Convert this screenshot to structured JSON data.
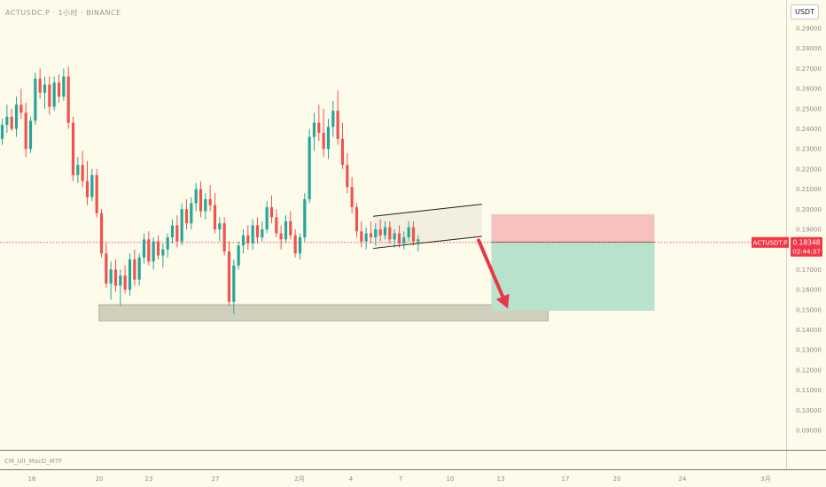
{
  "header": {
    "symbol_title": "ACTUSDC.P · 1小时 · BINANCE",
    "currency": "USDT"
  },
  "indicator": {
    "name": "CM_Ult_MacD_MTF"
  },
  "colors": {
    "background": "#fdfbe9",
    "bull": "#26a69a",
    "bear": "#ef5350",
    "price_line": "#f23645",
    "stop_zone": "#f7c1bd",
    "target_zone": "#b9e2cc",
    "support_zone": "#c9c9b6",
    "arrow": "#e8374b"
  },
  "chart_data": {
    "type": "candlestick",
    "title": "ACTUSDC.P · 1小时 · BINANCE",
    "x_tick_labels": [
      "16",
      "20",
      "23",
      "27",
      "2月",
      "4",
      "7",
      "10",
      "13",
      "17",
      "20",
      "24",
      "3月"
    ],
    "y_tick_labels": [
      "0.29000",
      "0.28000",
      "0.27000",
      "0.26000",
      "0.25000",
      "0.24000",
      "0.23000",
      "0.22000",
      "0.21000",
      "0.20000",
      "0.19000",
      "0.18000",
      "0.17000",
      "0.16000",
      "0.15000",
      "0.14000",
      "0.13000",
      "0.12000",
      "0.11000",
      "0.10000",
      "0.09000"
    ],
    "ylim": [
      0.085,
      0.3
    ],
    "y_ticks": [
      0.29,
      0.28,
      0.27,
      0.26,
      0.25,
      0.24,
      0.23,
      0.22,
      0.21,
      0.2,
      0.19,
      0.18,
      0.17,
      0.16,
      0.15,
      0.14,
      0.13,
      0.12,
      0.11,
      0.1,
      0.09
    ],
    "last_price": {
      "symbol": "ACTUSDT.P",
      "value": 0.18348,
      "price_label": "0.18348",
      "countdown": "02:44:37"
    },
    "candles": [
      {
        "o": 0.235,
        "h": 0.245,
        "l": 0.232,
        "c": 0.242
      },
      {
        "o": 0.242,
        "h": 0.252,
        "l": 0.238,
        "c": 0.246
      },
      {
        "o": 0.246,
        "h": 0.25,
        "l": 0.239,
        "c": 0.24
      },
      {
        "o": 0.24,
        "h": 0.256,
        "l": 0.236,
        "c": 0.252
      },
      {
        "o": 0.252,
        "h": 0.26,
        "l": 0.245,
        "c": 0.248
      },
      {
        "o": 0.248,
        "h": 0.253,
        "l": 0.226,
        "c": 0.23
      },
      {
        "o": 0.23,
        "h": 0.246,
        "l": 0.228,
        "c": 0.244
      },
      {
        "o": 0.244,
        "h": 0.268,
        "l": 0.242,
        "c": 0.265
      },
      {
        "o": 0.265,
        "h": 0.27,
        "l": 0.255,
        "c": 0.258
      },
      {
        "o": 0.258,
        "h": 0.266,
        "l": 0.25,
        "c": 0.262
      },
      {
        "o": 0.262,
        "h": 0.266,
        "l": 0.247,
        "c": 0.251
      },
      {
        "o": 0.251,
        "h": 0.266,
        "l": 0.249,
        "c": 0.263
      },
      {
        "o": 0.263,
        "h": 0.267,
        "l": 0.253,
        "c": 0.256
      },
      {
        "o": 0.256,
        "h": 0.27,
        "l": 0.254,
        "c": 0.266
      },
      {
        "o": 0.266,
        "h": 0.271,
        "l": 0.24,
        "c": 0.243
      },
      {
        "o": 0.243,
        "h": 0.246,
        "l": 0.214,
        "c": 0.217
      },
      {
        "o": 0.217,
        "h": 0.226,
        "l": 0.213,
        "c": 0.222
      },
      {
        "o": 0.222,
        "h": 0.229,
        "l": 0.211,
        "c": 0.214
      },
      {
        "o": 0.214,
        "h": 0.224,
        "l": 0.202,
        "c": 0.206
      },
      {
        "o": 0.206,
        "h": 0.22,
        "l": 0.204,
        "c": 0.217
      },
      {
        "o": 0.217,
        "h": 0.22,
        "l": 0.196,
        "c": 0.198
      },
      {
        "o": 0.198,
        "h": 0.2,
        "l": 0.176,
        "c": 0.178
      },
      {
        "o": 0.178,
        "h": 0.184,
        "l": 0.161,
        "c": 0.163
      },
      {
        "o": 0.163,
        "h": 0.174,
        "l": 0.155,
        "c": 0.17
      },
      {
        "o": 0.17,
        "h": 0.175,
        "l": 0.159,
        "c": 0.162
      },
      {
        "o": 0.162,
        "h": 0.17,
        "l": 0.152,
        "c": 0.167
      },
      {
        "o": 0.167,
        "h": 0.172,
        "l": 0.158,
        "c": 0.16
      },
      {
        "o": 0.16,
        "h": 0.178,
        "l": 0.157,
        "c": 0.175
      },
      {
        "o": 0.175,
        "h": 0.18,
        "l": 0.162,
        "c": 0.165
      },
      {
        "o": 0.165,
        "h": 0.178,
        "l": 0.162,
        "c": 0.176
      },
      {
        "o": 0.176,
        "h": 0.188,
        "l": 0.173,
        "c": 0.185
      },
      {
        "o": 0.185,
        "h": 0.189,
        "l": 0.172,
        "c": 0.174
      },
      {
        "o": 0.174,
        "h": 0.186,
        "l": 0.17,
        "c": 0.184
      },
      {
        "o": 0.184,
        "h": 0.187,
        "l": 0.175,
        "c": 0.177
      },
      {
        "o": 0.177,
        "h": 0.183,
        "l": 0.171,
        "c": 0.18
      },
      {
        "o": 0.18,
        "h": 0.188,
        "l": 0.176,
        "c": 0.186
      },
      {
        "o": 0.186,
        "h": 0.195,
        "l": 0.183,
        "c": 0.192
      },
      {
        "o": 0.192,
        "h": 0.197,
        "l": 0.181,
        "c": 0.184
      },
      {
        "o": 0.184,
        "h": 0.203,
        "l": 0.182,
        "c": 0.2
      },
      {
        "o": 0.2,
        "h": 0.205,
        "l": 0.19,
        "c": 0.193
      },
      {
        "o": 0.193,
        "h": 0.206,
        "l": 0.19,
        "c": 0.203
      },
      {
        "o": 0.203,
        "h": 0.213,
        "l": 0.199,
        "c": 0.21
      },
      {
        "o": 0.21,
        "h": 0.214,
        "l": 0.196,
        "c": 0.199
      },
      {
        "o": 0.199,
        "h": 0.208,
        "l": 0.195,
        "c": 0.205
      },
      {
        "o": 0.205,
        "h": 0.212,
        "l": 0.199,
        "c": 0.202
      },
      {
        "o": 0.202,
        "h": 0.208,
        "l": 0.188,
        "c": 0.19
      },
      {
        "o": 0.19,
        "h": 0.196,
        "l": 0.184,
        "c": 0.193
      },
      {
        "o": 0.193,
        "h": 0.196,
        "l": 0.177,
        "c": 0.179
      },
      {
        "o": 0.179,
        "h": 0.184,
        "l": 0.152,
        "c": 0.154
      },
      {
        "o": 0.154,
        "h": 0.175,
        "l": 0.148,
        "c": 0.172
      },
      {
        "o": 0.172,
        "h": 0.184,
        "l": 0.17,
        "c": 0.182
      },
      {
        "o": 0.182,
        "h": 0.19,
        "l": 0.178,
        "c": 0.187
      },
      {
        "o": 0.187,
        "h": 0.192,
        "l": 0.18,
        "c": 0.183
      },
      {
        "o": 0.183,
        "h": 0.195,
        "l": 0.18,
        "c": 0.192
      },
      {
        "o": 0.192,
        "h": 0.196,
        "l": 0.183,
        "c": 0.186
      },
      {
        "o": 0.186,
        "h": 0.194,
        "l": 0.184,
        "c": 0.19
      },
      {
        "o": 0.19,
        "h": 0.204,
        "l": 0.188,
        "c": 0.201
      },
      {
        "o": 0.201,
        "h": 0.207,
        "l": 0.193,
        "c": 0.196
      },
      {
        "o": 0.196,
        "h": 0.2,
        "l": 0.186,
        "c": 0.188
      },
      {
        "o": 0.188,
        "h": 0.192,
        "l": 0.18,
        "c": 0.185
      },
      {
        "o": 0.185,
        "h": 0.197,
        "l": 0.183,
        "c": 0.194
      },
      {
        "o": 0.194,
        "h": 0.199,
        "l": 0.185,
        "c": 0.187
      },
      {
        "o": 0.187,
        "h": 0.19,
        "l": 0.176,
        "c": 0.178
      },
      {
        "o": 0.178,
        "h": 0.188,
        "l": 0.175,
        "c": 0.186
      },
      {
        "o": 0.186,
        "h": 0.208,
        "l": 0.184,
        "c": 0.205
      },
      {
        "o": 0.205,
        "h": 0.24,
        "l": 0.203,
        "c": 0.236
      },
      {
        "o": 0.236,
        "h": 0.248,
        "l": 0.229,
        "c": 0.243
      },
      {
        "o": 0.243,
        "h": 0.252,
        "l": 0.234,
        "c": 0.238
      },
      {
        "o": 0.238,
        "h": 0.25,
        "l": 0.226,
        "c": 0.23
      },
      {
        "o": 0.23,
        "h": 0.245,
        "l": 0.225,
        "c": 0.241
      },
      {
        "o": 0.241,
        "h": 0.254,
        "l": 0.236,
        "c": 0.249
      },
      {
        "o": 0.249,
        "h": 0.259,
        "l": 0.232,
        "c": 0.235
      },
      {
        "o": 0.235,
        "h": 0.243,
        "l": 0.22,
        "c": 0.222
      },
      {
        "o": 0.222,
        "h": 0.228,
        "l": 0.208,
        "c": 0.211
      },
      {
        "o": 0.211,
        "h": 0.216,
        "l": 0.198,
        "c": 0.201
      },
      {
        "o": 0.201,
        "h": 0.203,
        "l": 0.186,
        "c": 0.189
      },
      {
        "o": 0.189,
        "h": 0.194,
        "l": 0.181,
        "c": 0.184
      },
      {
        "o": 0.184,
        "h": 0.191,
        "l": 0.18,
        "c": 0.188
      },
      {
        "o": 0.188,
        "h": 0.194,
        "l": 0.183,
        "c": 0.186
      },
      {
        "o": 0.186,
        "h": 0.193,
        "l": 0.182,
        "c": 0.19
      },
      {
        "o": 0.19,
        "h": 0.195,
        "l": 0.184,
        "c": 0.187
      },
      {
        "o": 0.187,
        "h": 0.194,
        "l": 0.185,
        "c": 0.191
      },
      {
        "o": 0.191,
        "h": 0.194,
        "l": 0.183,
        "c": 0.185
      },
      {
        "o": 0.185,
        "h": 0.19,
        "l": 0.181,
        "c": 0.188
      },
      {
        "o": 0.188,
        "h": 0.192,
        "l": 0.181,
        "c": 0.183
      },
      {
        "o": 0.183,
        "h": 0.189,
        "l": 0.18,
        "c": 0.186
      },
      {
        "o": 0.186,
        "h": 0.194,
        "l": 0.184,
        "c": 0.191
      },
      {
        "o": 0.191,
        "h": 0.194,
        "l": 0.182,
        "c": 0.184
      },
      {
        "o": 0.184,
        "h": 0.187,
        "l": 0.179,
        "c": 0.185
      }
    ],
    "drawings": {
      "support_zone": {
        "from_x": 20.5,
        "to_x": 115.5,
        "y_low": 0.1445,
        "y_high": 0.1525
      },
      "channel": {
        "from_x": 78.5,
        "to_x": 101.5,
        "upper": [
          0.1965,
          0.2025
        ],
        "lower": [
          0.1805,
          0.1865
        ]
      },
      "risk_reward": {
        "from_x": 103.5,
        "to_x": 138,
        "entry": 0.1837,
        "stop": 0.1975,
        "target": 0.1495
      },
      "arrow": {
        "from": [
          100.8,
          0.1845
        ],
        "to": [
          107,
          0.1505
        ]
      }
    },
    "grid": false
  }
}
